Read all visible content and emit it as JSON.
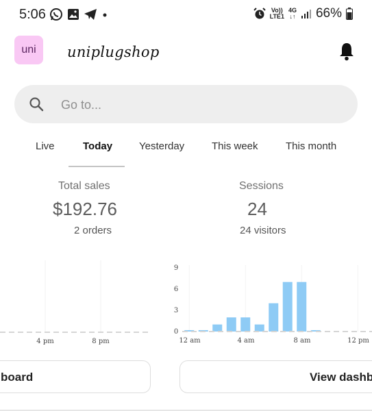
{
  "status_bar": {
    "time": "5:06",
    "icons_left": [
      "whatsapp-icon",
      "image-icon",
      "telegram-icon",
      "dot-icon"
    ],
    "network_top": "Vo))",
    "network_bottom": "LTE1",
    "net_type": "4G",
    "battery": "66%"
  },
  "header": {
    "logo_text": "uni",
    "shop_name": "uniplugshop",
    "notification_icon": "bell-icon"
  },
  "search": {
    "placeholder": "Go to..."
  },
  "tabs": [
    {
      "label": "Live",
      "active": false
    },
    {
      "label": "Today",
      "active": true
    },
    {
      "label": "Yesterday",
      "active": false
    },
    {
      "label": "This week",
      "active": false
    },
    {
      "label": "This month",
      "active": false
    }
  ],
  "stats": {
    "sales": {
      "label": "Total sales",
      "value": "$192.76",
      "sub": "2 orders"
    },
    "sessions": {
      "label": "Sessions",
      "value": "24",
      "sub": "24 visitors"
    }
  },
  "chart_data": [
    {
      "type": "line",
      "x_tick_labels": [
        "4 pm",
        "8 pm"
      ],
      "series": []
    },
    {
      "type": "bar",
      "y_ticks": [
        "0",
        "3",
        "6",
        "9"
      ],
      "ylim": [
        0,
        9
      ],
      "x_tick_labels": [
        "12 am",
        "4 am",
        "8 am",
        "12 pm"
      ],
      "hours": [
        0,
        1,
        2,
        3,
        4,
        5,
        6,
        7,
        8,
        9,
        10,
        11,
        12,
        13,
        14,
        15,
        16,
        17,
        18,
        19,
        20,
        21,
        22,
        23
      ],
      "values": [
        0.2,
        0.2,
        1,
        2,
        2,
        1,
        4,
        7,
        7,
        0.2,
        0,
        0,
        0,
        0,
        0,
        0,
        0,
        0,
        0,
        0,
        0,
        0,
        0,
        0
      ],
      "color": "#8ecbf5"
    }
  ],
  "buttons": {
    "left_label": "board",
    "right_label": "View dashbo"
  },
  "colors": {
    "logo_bg": "#f9c8f4",
    "bar": "#8ecbf5",
    "search_bg": "#eeeeee"
  }
}
